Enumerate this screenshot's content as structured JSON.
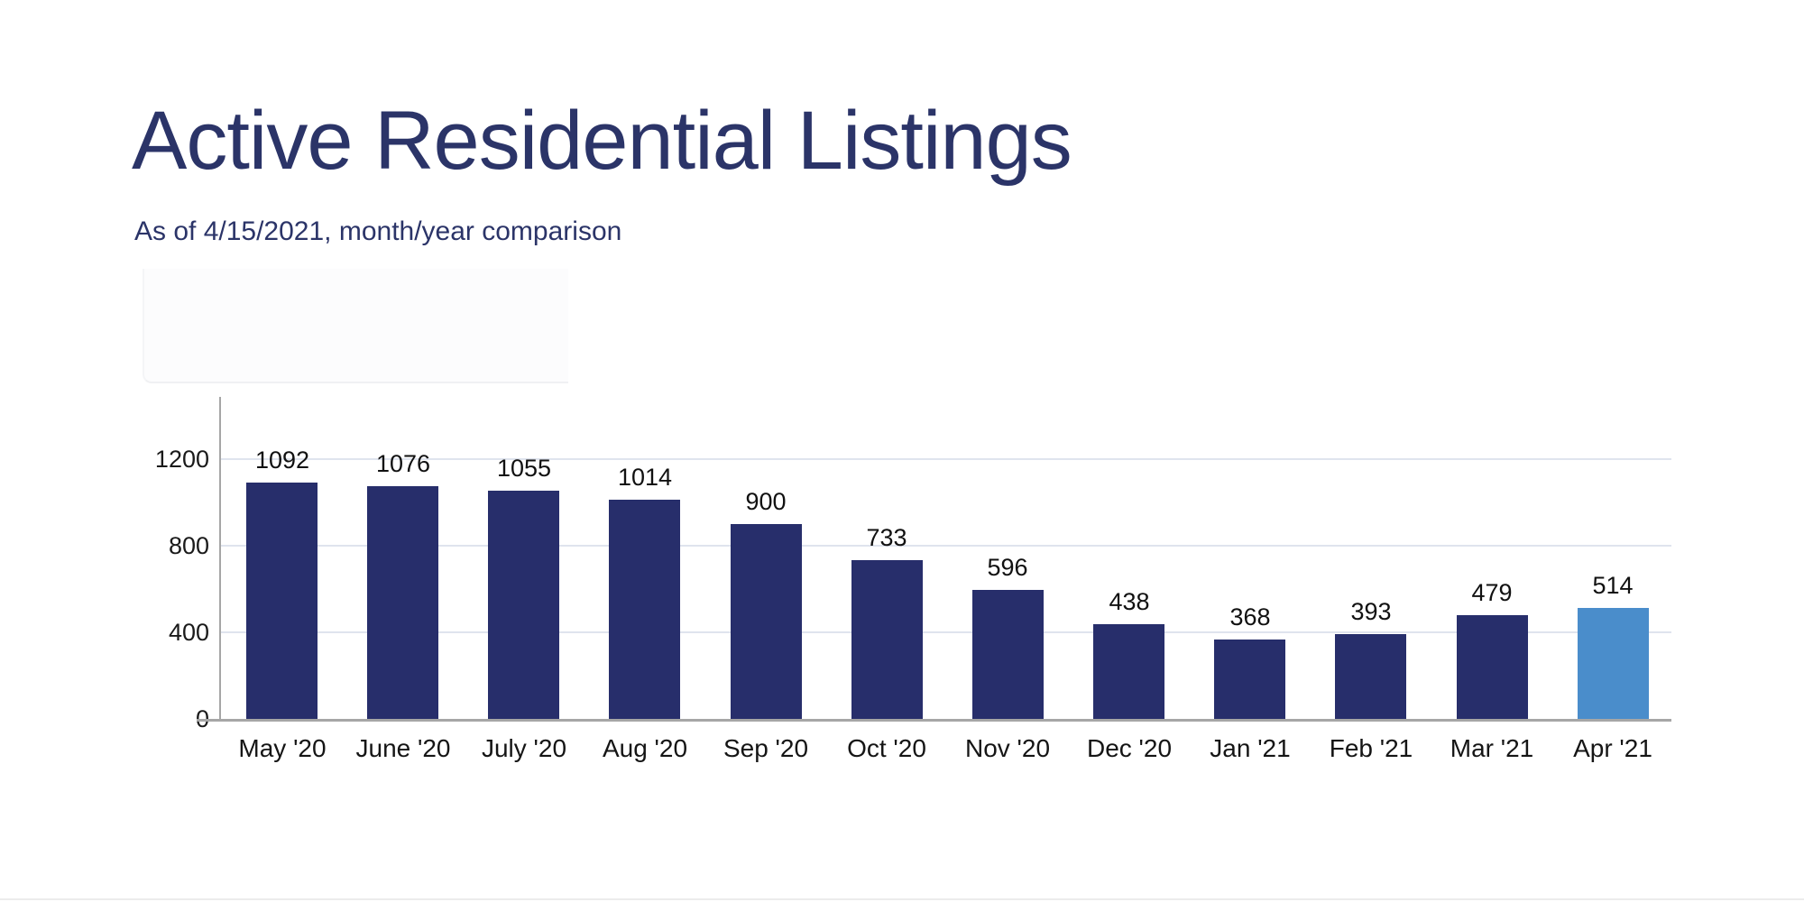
{
  "header": {
    "title": "Active Residential Listings",
    "subtitle": "As of 4/15/2021, month/year comparison"
  },
  "chart_data": {
    "type": "bar",
    "title": "Active Residential Listings",
    "subtitle": "As of 4/15/2021, month/year comparison",
    "categories": [
      "May '20",
      "June '20",
      "July '20",
      "Aug '20",
      "Sep '20",
      "Oct '20",
      "Nov '20",
      "Dec '20",
      "Jan '21",
      "Feb '21",
      "Mar '21",
      "Apr '21"
    ],
    "values": [
      1092,
      1076,
      1055,
      1014,
      900,
      733,
      596,
      438,
      368,
      393,
      479,
      514
    ],
    "data_labels": [
      1092,
      1076,
      1055,
      1014,
      900,
      733,
      596,
      438,
      368,
      393,
      479,
      514
    ],
    "xlabel": "",
    "ylabel": "",
    "yticks": [
      0,
      400,
      800,
      1200
    ],
    "ylim": [
      0,
      1400
    ],
    "grid": true,
    "legend": "none",
    "highlight_index": 11,
    "colors": {
      "bar": "#272E6B",
      "highlight_bar": "#4A8DCB",
      "gridline": "#DFE4EE",
      "axis": "#A6A6A6",
      "title": "#2B3468",
      "value_label": "#111111",
      "tick_label": "#1a1a1a"
    }
  }
}
